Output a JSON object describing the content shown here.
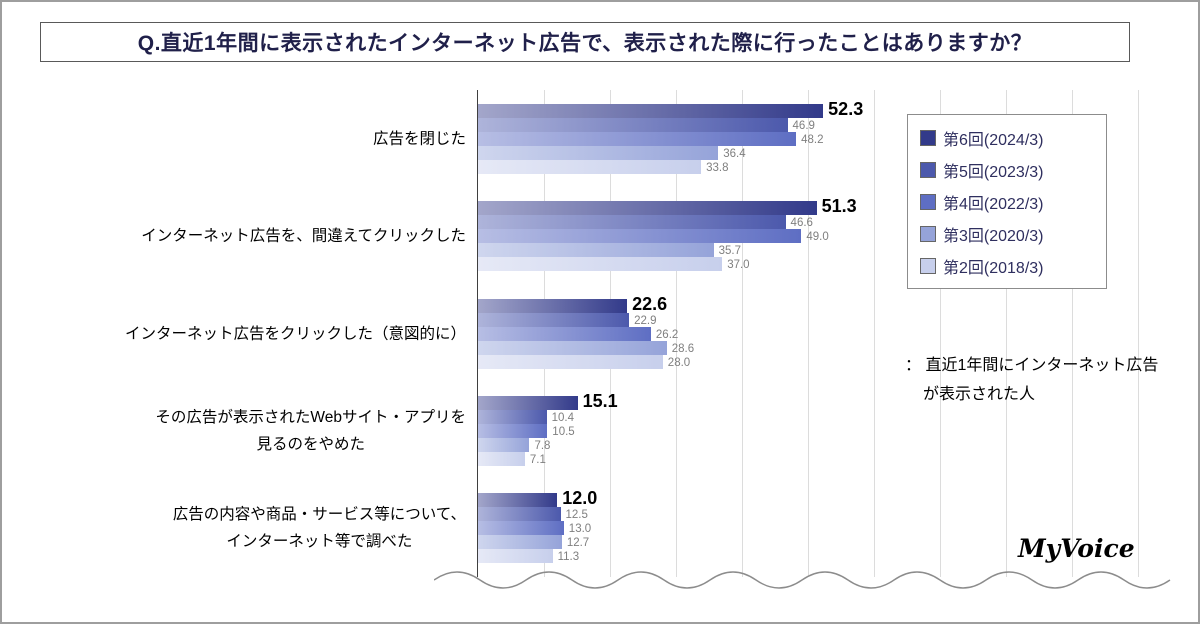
{
  "annotation": {
    "lines": [
      "： 直近1年間にインターネット広告",
      "が表示された人"
    ]
  },
  "watermark": "MyVoice",
  "chart_data": {
    "type": "bar",
    "orientation": "horizontal",
    "title": "Q.直近1年間に表示されたインターネット広告で、表示された際に行ったことはありますか？",
    "categories": [
      "広告を閉じた",
      "インターネット広告を、間違えてクリックした",
      "インターネット広告をクリックした（意図的に）",
      "その広告が表示されたWebサイト・アプリを\n見るのをやめた",
      "広告の内容や商品・サービス等について、\nインターネット等で調べた"
    ],
    "series": [
      {
        "name": "第6回(2024/3)",
        "color": "#323a8a",
        "values": [
          52.3,
          51.3,
          22.6,
          15.1,
          12.0
        ]
      },
      {
        "name": "第5回(2023/3)",
        "color": "#4c59ac",
        "values": [
          46.9,
          46.6,
          22.9,
          10.4,
          12.5
        ]
      },
      {
        "name": "第4回(2022/3)",
        "color": "#5e6ec3",
        "values": [
          48.2,
          49.0,
          26.2,
          10.5,
          13.0
        ]
      },
      {
        "name": "第3回(2020/3)",
        "color": "#95a3d9",
        "values": [
          36.4,
          35.7,
          28.6,
          7.8,
          12.7
        ]
      },
      {
        "name": "第2回(2018/3)",
        "color": "#c7cfec",
        "values": [
          33.8,
          37.0,
          28.0,
          7.1,
          11.3
        ]
      }
    ],
    "xlim": [
      0,
      100
    ],
    "grid_interval": 10,
    "grid": true,
    "legend_position": "right",
    "value_labels": true
  }
}
